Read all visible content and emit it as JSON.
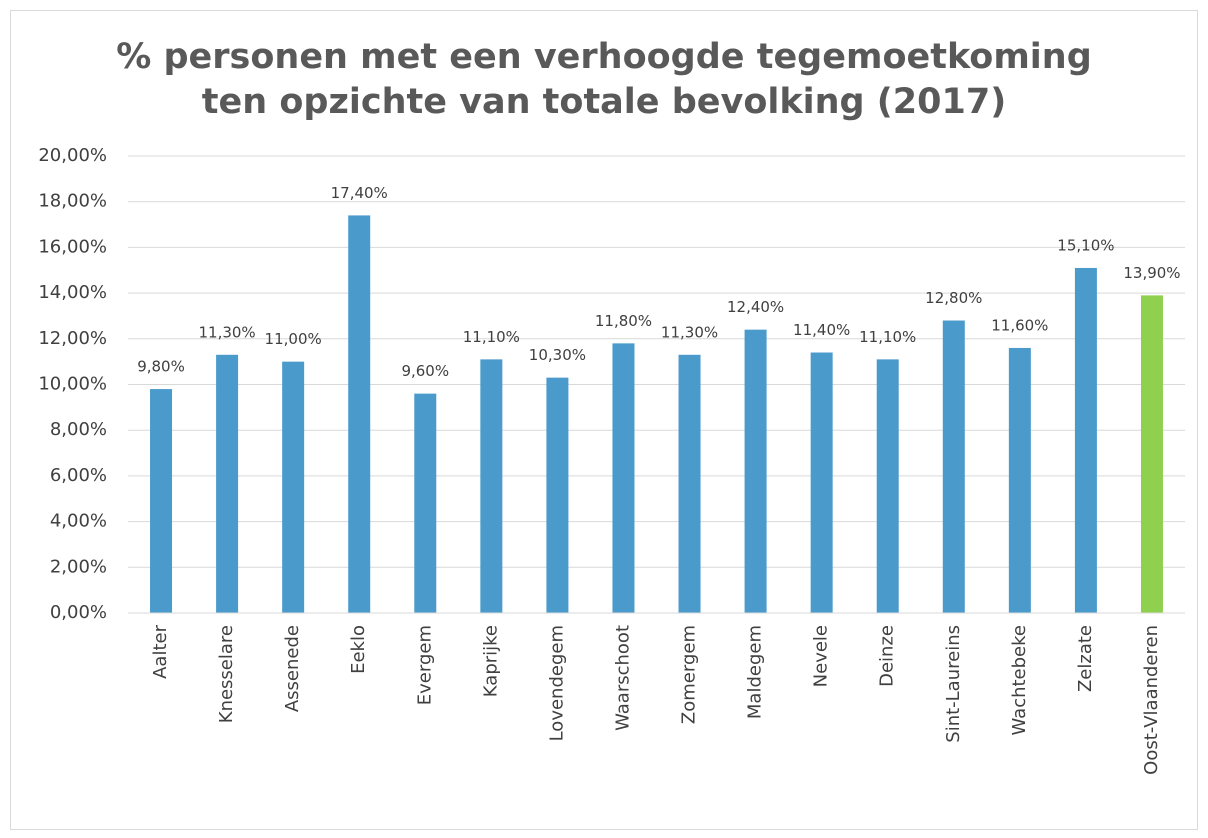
{
  "chart_data": {
    "type": "bar",
    "title": [
      "% personen met een verhoogde tegemoetkoming",
      "ten opzichte van totale bevolking (2017)"
    ],
    "categories": [
      "Aalter",
      "Knesselare",
      "Assenede",
      "Eeklo",
      "Evergem",
      "Kaprijke",
      "Lovendegem",
      "Waarschoot",
      "Zomergem",
      "Maldegem",
      "Nevele",
      "Deinze",
      "Sint-Laureins",
      "Wachtebeke",
      "Zelzate",
      "Oost-Vlaanderen"
    ],
    "values": [
      9.8,
      11.3,
      11.0,
      17.4,
      9.6,
      11.1,
      10.3,
      11.8,
      11.3,
      12.4,
      11.4,
      11.1,
      12.8,
      11.6,
      15.1,
      13.9
    ],
    "value_labels": [
      "9,80%",
      "11,30%",
      "11,00%",
      "17,40%",
      "9,60%",
      "11,10%",
      "10,30%",
      "11,80%",
      "11,30%",
      "12,40%",
      "11,40%",
      "11,10%",
      "12,80%",
      "11,60%",
      "15,10%",
      "13,90%"
    ],
    "colors": [
      "#4a9bcc",
      "#4a9bcc",
      "#4a9bcc",
      "#4a9bcc",
      "#4a9bcc",
      "#4a9bcc",
      "#4a9bcc",
      "#4a9bcc",
      "#4a9bcc",
      "#4a9bcc",
      "#4a9bcc",
      "#4a9bcc",
      "#4a9bcc",
      "#4a9bcc",
      "#4a9bcc",
      "#8fd14f"
    ],
    "ylim": [
      0,
      20
    ],
    "yticks": [
      {
        "value": 0,
        "label": "0,00%"
      },
      {
        "value": 2,
        "label": "2,00%"
      },
      {
        "value": 4,
        "label": "4,00%"
      },
      {
        "value": 6,
        "label": "6,00%"
      },
      {
        "value": 8,
        "label": "8,00%"
      },
      {
        "value": 10,
        "label": "10,00%"
      },
      {
        "value": 12,
        "label": "12,00%"
      },
      {
        "value": 14,
        "label": "14,00%"
      },
      {
        "value": 16,
        "label": "16,00%"
      },
      {
        "value": 18,
        "label": "18,00%"
      },
      {
        "value": 20,
        "label": "20,00%"
      }
    ],
    "grid": true
  }
}
